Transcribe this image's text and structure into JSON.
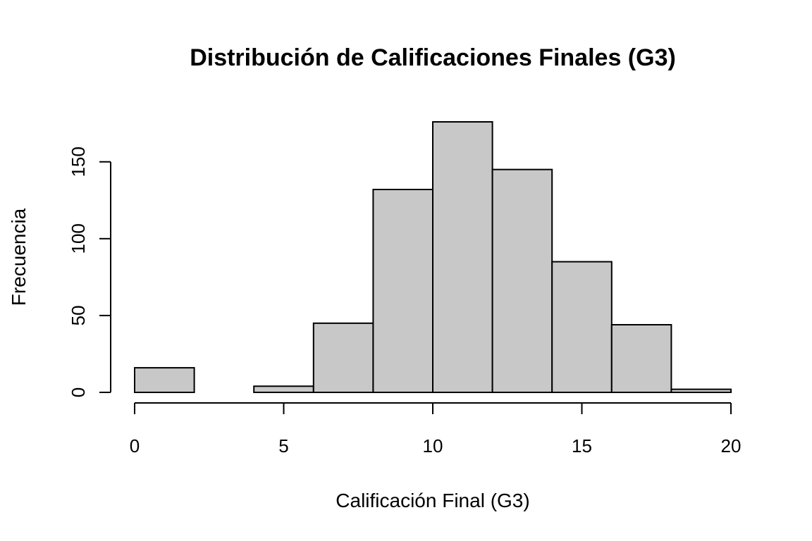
{
  "chart_data": {
    "type": "bar",
    "title": "Distribución de Calificaciones Finales (G3)",
    "xlabel": "Calificación Final (G3)",
    "ylabel": "Frecuencia",
    "bins": [
      {
        "start": 0,
        "end": 2,
        "value": 16
      },
      {
        "start": 2,
        "end": 4,
        "value": 0
      },
      {
        "start": 4,
        "end": 6,
        "value": 4
      },
      {
        "start": 6,
        "end": 8,
        "value": 45
      },
      {
        "start": 8,
        "end": 10,
        "value": 132
      },
      {
        "start": 10,
        "end": 12,
        "value": 176
      },
      {
        "start": 12,
        "end": 14,
        "value": 145
      },
      {
        "start": 14,
        "end": 16,
        "value": 85
      },
      {
        "start": 16,
        "end": 18,
        "value": 44
      },
      {
        "start": 18,
        "end": 20,
        "value": 2
      }
    ],
    "xlim": [
      0,
      20
    ],
    "ylim": [
      0,
      176
    ],
    "x_ticks": [
      "0",
      "5",
      "10",
      "15",
      "20"
    ],
    "y_ticks": [
      "0",
      "50",
      "100",
      "150"
    ],
    "bar_color": "#c8c8c8",
    "edge_color": "#000000",
    "grid": false,
    "legend": "none"
  }
}
